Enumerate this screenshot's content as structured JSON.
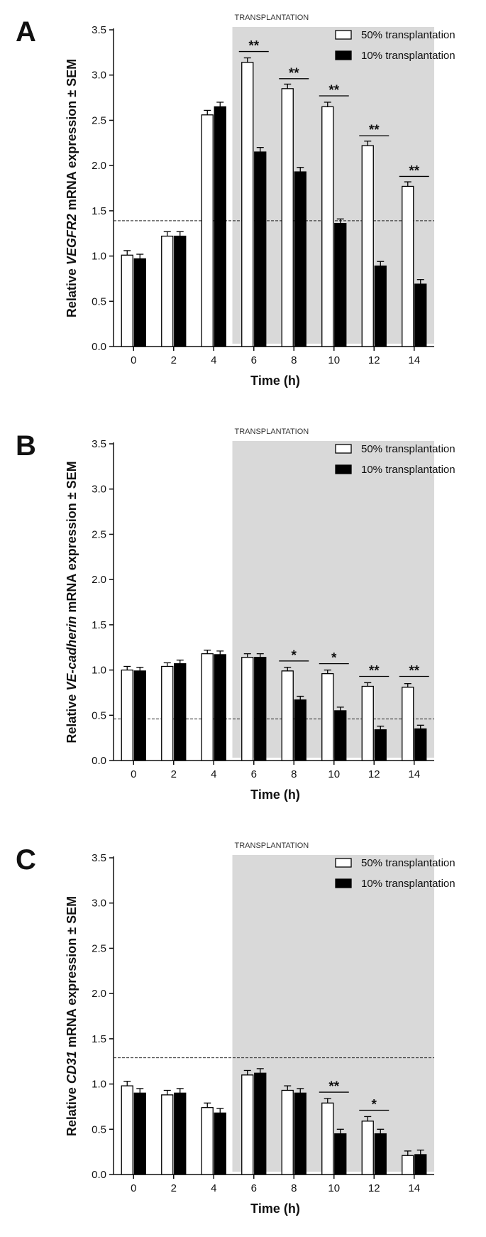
{
  "figure": {
    "shade_label": "TRANSPLANTATION",
    "legend": [
      "50% transplantation",
      "10% transplantation"
    ],
    "xlabel": "Time (h)",
    "colors": {
      "series1": "#ffffff",
      "series2": "#000000",
      "shade": "#d9d9d9",
      "axis": "#111111"
    }
  },
  "chart_data": [
    {
      "panel": "A",
      "type": "bar",
      "title": "",
      "ylabel_pre": "Relative ",
      "ylabel_gene": "VEGFR2",
      "ylabel_post": " mRNA expression ± SEM",
      "xlabel": "Time (h)",
      "categories": [
        "0",
        "2",
        "4",
        "6",
        "8",
        "10",
        "12",
        "14"
      ],
      "yticks": [
        "0.0",
        "0.5",
        "1.0",
        "1.5",
        "2.0",
        "2.5",
        "3.0",
        "3.5"
      ],
      "ylim": [
        0,
        3.5
      ],
      "series": [
        {
          "name": "50% transplantation",
          "values": [
            1.01,
            1.22,
            2.56,
            3.14,
            2.85,
            2.65,
            2.22,
            1.77
          ],
          "errors": [
            0.05,
            0.05,
            0.05,
            0.05,
            0.05,
            0.05,
            0.05,
            0.05
          ]
        },
        {
          "name": "10% transplantation",
          "values": [
            0.97,
            1.22,
            2.65,
            2.15,
            1.93,
            1.36,
            0.89,
            0.69
          ],
          "errors": [
            0.05,
            0.05,
            0.05,
            0.05,
            0.05,
            0.05,
            0.05,
            0.05
          ]
        }
      ],
      "threshold": 1.39,
      "shade_from": "6",
      "significance": [
        {
          "category": "6",
          "label": "**",
          "y": 3.26
        },
        {
          "category": "8",
          "label": "**",
          "y": 2.96
        },
        {
          "category": "10",
          "label": "**",
          "y": 2.77
        },
        {
          "category": "12",
          "label": "**",
          "y": 2.33
        },
        {
          "category": "14",
          "label": "**",
          "y": 1.88
        }
      ]
    },
    {
      "panel": "B",
      "type": "bar",
      "title": "",
      "ylabel_pre": "Relative ",
      "ylabel_gene": "VE-cadherin",
      "ylabel_post": " mRNA expression ± SEM",
      "xlabel": "Time (h)",
      "categories": [
        "0",
        "2",
        "4",
        "6",
        "8",
        "10",
        "12",
        "14"
      ],
      "yticks": [
        "0.0",
        "0.5",
        "1.0",
        "1.5",
        "2.0",
        "2.5",
        "3.0",
        "3.5"
      ],
      "ylim": [
        0,
        3.5
      ],
      "series": [
        {
          "name": "50% transplantation",
          "values": [
            1.0,
            1.04,
            1.18,
            1.14,
            0.99,
            0.96,
            0.82,
            0.81
          ],
          "errors": [
            0.04,
            0.04,
            0.04,
            0.04,
            0.04,
            0.04,
            0.04,
            0.04
          ]
        },
        {
          "name": "10% transplantation",
          "values": [
            0.99,
            1.07,
            1.17,
            1.14,
            0.67,
            0.55,
            0.34,
            0.35
          ],
          "errors": [
            0.04,
            0.04,
            0.04,
            0.04,
            0.04,
            0.04,
            0.04,
            0.04
          ]
        }
      ],
      "threshold": 0.46,
      "shade_from": "6",
      "significance": [
        {
          "category": "8",
          "label": "*",
          "y": 1.1
        },
        {
          "category": "10",
          "label": "*",
          "y": 1.07
        },
        {
          "category": "12",
          "label": "**",
          "y": 0.93
        },
        {
          "category": "14",
          "label": "**",
          "y": 0.93
        }
      ]
    },
    {
      "panel": "C",
      "type": "bar",
      "title": "",
      "ylabel_pre": "Relative ",
      "ylabel_gene": "CD31",
      "ylabel_post": " mRNA expression ± SEM",
      "xlabel": "Time (h)",
      "categories": [
        "0",
        "2",
        "4",
        "6",
        "8",
        "10",
        "12",
        "14"
      ],
      "yticks": [
        "0.0",
        "0.5",
        "1.0",
        "1.5",
        "2.0",
        "2.5",
        "3.0",
        "3.5"
      ],
      "ylim": [
        0,
        3.5
      ],
      "series": [
        {
          "name": "50% transplantation",
          "values": [
            0.98,
            0.88,
            0.74,
            1.1,
            0.93,
            0.79,
            0.59,
            0.21
          ],
          "errors": [
            0.05,
            0.05,
            0.05,
            0.05,
            0.05,
            0.05,
            0.05,
            0.05
          ]
        },
        {
          "name": "10% transplantation",
          "values": [
            0.9,
            0.9,
            0.68,
            1.12,
            0.9,
            0.45,
            0.45,
            0.22
          ],
          "errors": [
            0.05,
            0.05,
            0.05,
            0.05,
            0.05,
            0.05,
            0.05,
            0.05
          ]
        }
      ],
      "threshold": 1.29,
      "shade_from": "6",
      "significance": [
        {
          "category": "10",
          "label": "**",
          "y": 0.91
        },
        {
          "category": "12",
          "label": "*",
          "y": 0.71
        }
      ]
    }
  ]
}
